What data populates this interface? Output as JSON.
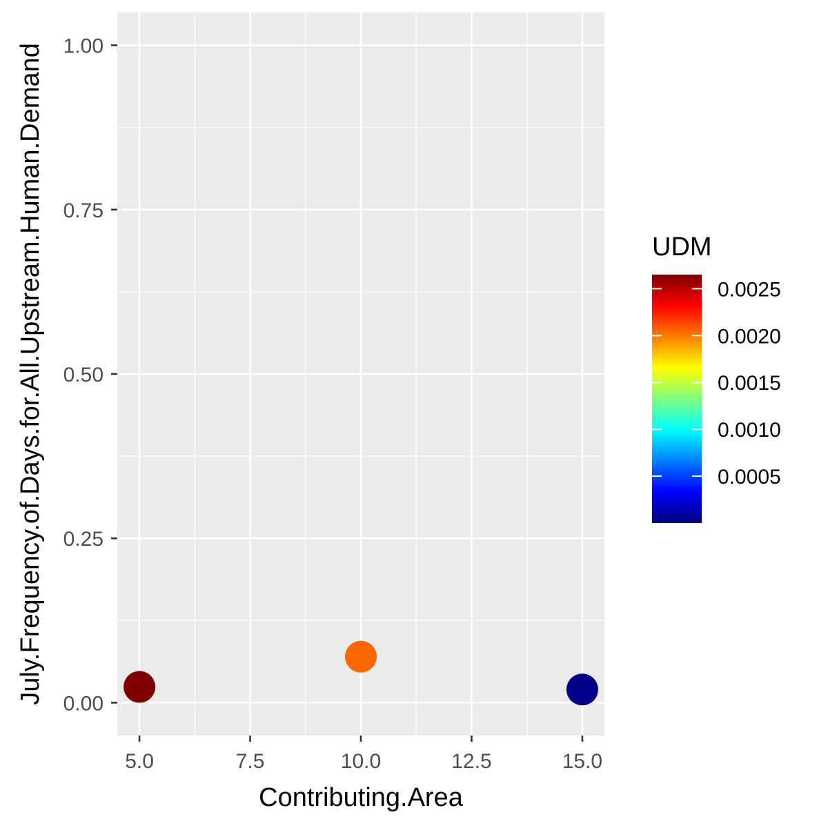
{
  "chart_data": {
    "type": "scatter",
    "title": "",
    "xlabel": "Contributing.Area",
    "ylabel": "July.Frequency.of.Days.for.All.Upstream.Human.Demand",
    "xlim": [
      4.5,
      15.5
    ],
    "ylim": [
      -0.05,
      1.05
    ],
    "x_ticks": [
      5.0,
      7.5,
      10.0,
      12.5,
      15.0
    ],
    "x_tick_labels": [
      "5.0",
      "7.5",
      "10.0",
      "12.5",
      "15.0"
    ],
    "y_ticks": [
      0.0,
      0.25,
      0.5,
      0.75,
      1.0
    ],
    "y_tick_labels": [
      "0.00",
      "0.25",
      "0.50",
      "0.75",
      "1.00"
    ],
    "grid": true,
    "panel_background": "#ebebeb",
    "points": [
      {
        "x": 5,
        "y": 0.024,
        "udm": 0.00265
      },
      {
        "x": 10,
        "y": 0.07,
        "udm": 0.00205
      },
      {
        "x": 15,
        "y": 0.02,
        "udm": 3e-05
      }
    ],
    "color_legend": {
      "title": "UDM",
      "position": "right",
      "range": [
        0.0,
        0.00265
      ],
      "ticks": [
        0.0025,
        0.002,
        0.0015,
        0.001,
        0.0005
      ],
      "tick_labels": [
        "0.0025",
        "0.0020",
        "0.0015",
        "0.0010",
        "0.0005"
      ],
      "colormap": [
        "#00007F",
        "#0000FF",
        "#007FFF",
        "#00FFFF",
        "#7FFF7F",
        "#FFFF00",
        "#FF7F00",
        "#FF0000",
        "#7F0000"
      ]
    }
  }
}
